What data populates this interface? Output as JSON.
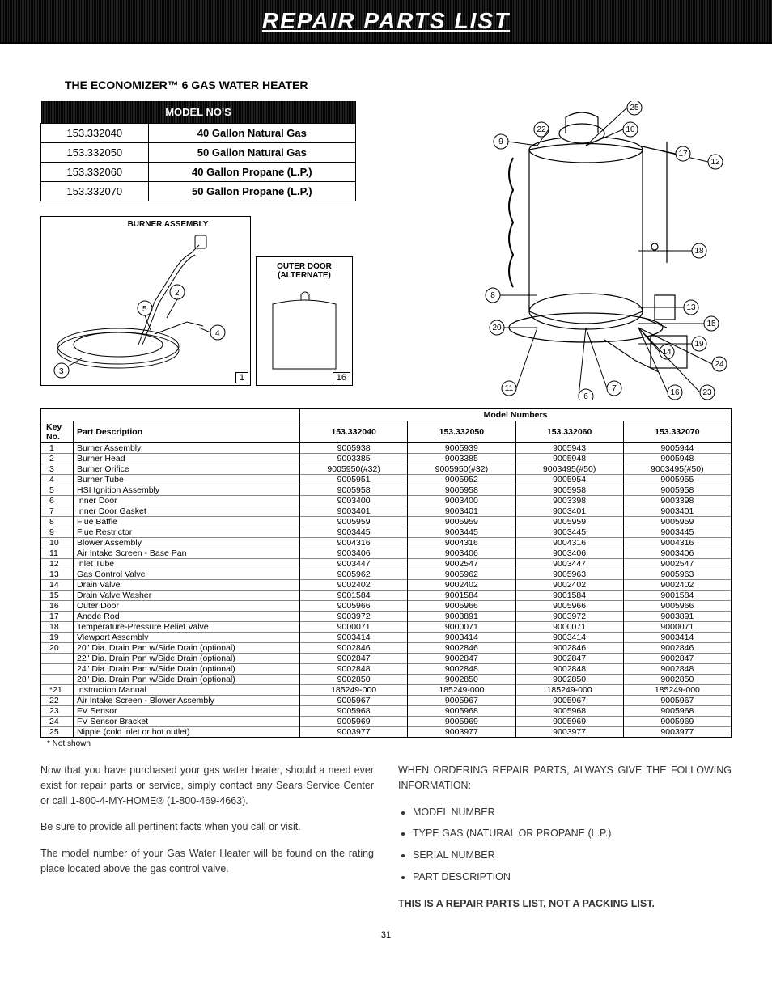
{
  "title": "REPAIR PARTS LIST",
  "subtitle": "THE ECONOMIZER™ 6 GAS WATER HEATER",
  "model_table": {
    "header": "MODEL NO'S",
    "rows": [
      {
        "num": "153.332040",
        "desc": "40 Gallon Natural Gas"
      },
      {
        "num": "153.332050",
        "desc": "50 Gallon Natural Gas"
      },
      {
        "num": "153.332060",
        "desc": "40 Gallon Propane (L.P.)"
      },
      {
        "num": "153.332070",
        "desc": "50 Gallon Propane (L.P.)"
      }
    ]
  },
  "diagram_labels": {
    "burner": "BURNER ASSEMBLY",
    "door_l1": "OUTER DOOR",
    "door_l2": "(ALTERNATE)",
    "burner_corner": "1",
    "door_corner": "16"
  },
  "callouts_burner": [
    "2",
    "3",
    "4",
    "5"
  ],
  "callouts_heater": [
    "6",
    "7",
    "8",
    "9",
    "10",
    "11",
    "12",
    "13",
    "14",
    "15",
    "16",
    "17",
    "18",
    "19",
    "20",
    "22",
    "23",
    "24",
    "25"
  ],
  "parts_header": {
    "model_numbers": "Model Numbers",
    "key": "Key No.",
    "desc": "Part Description"
  },
  "parts_cols": [
    "153.332040",
    "153.332050",
    "153.332060",
    "153.332070"
  ],
  "parts": [
    {
      "k": "1",
      "d": "Burner Assembly",
      "v": [
        "9005938",
        "9005939",
        "9005943",
        "9005944"
      ]
    },
    {
      "k": "2",
      "d": "Burner Head",
      "v": [
        "9003385",
        "9003385",
        "9005948",
        "9005948"
      ]
    },
    {
      "k": "3",
      "d": "Burner Orifice",
      "v": [
        "9005950(#32)",
        "9005950(#32)",
        "9003495(#50)",
        "9003495(#50)"
      ]
    },
    {
      "k": "4",
      "d": "Burner Tube",
      "v": [
        "9005951",
        "9005952",
        "9005954",
        "9005955"
      ]
    },
    {
      "k": "5",
      "d": "HSI Ignition Assembly",
      "v": [
        "9005958",
        "9005958",
        "9005958",
        "9005958"
      ]
    },
    {
      "k": "6",
      "d": "Inner Door",
      "v": [
        "9003400",
        "9003400",
        "9003398",
        "9003398"
      ]
    },
    {
      "k": "7",
      "d": "Inner Door Gasket",
      "v": [
        "9003401",
        "9003401",
        "9003401",
        "9003401"
      ]
    },
    {
      "k": "8",
      "d": "Flue Baffle",
      "v": [
        "9005959",
        "9005959",
        "9005959",
        "9005959"
      ]
    },
    {
      "k": "9",
      "d": "Flue Restrictor",
      "v": [
        "9003445",
        "9003445",
        "9003445",
        "9003445"
      ]
    },
    {
      "k": "10",
      "d": "Blower Assembly",
      "v": [
        "9004316",
        "9004316",
        "9004316",
        "9004316"
      ]
    },
    {
      "k": "11",
      "d": "Air Intake Screen - Base Pan",
      "v": [
        "9003406",
        "9003406",
        "9003406",
        "9003406"
      ]
    },
    {
      "k": "12",
      "d": "Inlet Tube",
      "v": [
        "9003447",
        "9002547",
        "9003447",
        "9002547"
      ]
    },
    {
      "k": "13",
      "d": "Gas Control Valve",
      "v": [
        "9005962",
        "9005962",
        "9005963",
        "9005963"
      ]
    },
    {
      "k": "14",
      "d": "Drain Valve",
      "v": [
        "9002402",
        "9002402",
        "9002402",
        "9002402"
      ]
    },
    {
      "k": "15",
      "d": "Drain Valve Washer",
      "v": [
        "9001584",
        "9001584",
        "9001584",
        "9001584"
      ]
    },
    {
      "k": "16",
      "d": "Outer Door",
      "v": [
        "9005966",
        "9005966",
        "9005966",
        "9005966"
      ]
    },
    {
      "k": "17",
      "d": "Anode Rod",
      "v": [
        "9003972",
        "9003891",
        "9003972",
        "9003891"
      ]
    },
    {
      "k": "18",
      "d": "Temperature-Pressure Relief Valve",
      "v": [
        "9000071",
        "9000071",
        "9000071",
        "9000071"
      ]
    },
    {
      "k": "19",
      "d": "Viewport Assembly",
      "v": [
        "9003414",
        "9003414",
        "9003414",
        "9003414"
      ]
    },
    {
      "k": "20",
      "d": "20\" Dia. Drain Pan w/Side Drain (optional)",
      "v": [
        "9002846",
        "9002846",
        "9002846",
        "9002846"
      ]
    },
    {
      "k": "",
      "d": "22\" Dia. Drain Pan w/Side Drain (optional)",
      "v": [
        "9002847",
        "9002847",
        "9002847",
        "9002847"
      ]
    },
    {
      "k": "",
      "d": "24\" Dia. Drain Pan w/Side Drain (optional)",
      "v": [
        "9002848",
        "9002848",
        "9002848",
        "9002848"
      ]
    },
    {
      "k": "",
      "d": "28\" Dia. Drain Pan w/Side Drain (optional)",
      "v": [
        "9002850",
        "9002850",
        "9002850",
        "9002850"
      ]
    },
    {
      "k": "*21",
      "d": "Instruction Manual",
      "v": [
        "185249-000",
        "185249-000",
        "185249-000",
        "185249-000"
      ]
    },
    {
      "k": "22",
      "d": "Air Intake Screen - Blower Assembly",
      "v": [
        "9005967",
        "9005967",
        "9005967",
        "9005967"
      ]
    },
    {
      "k": "23",
      "d": "FV Sensor",
      "v": [
        "9005968",
        "9005968",
        "9005968",
        "9005968"
      ]
    },
    {
      "k": "24",
      "d": "FV Sensor Bracket",
      "v": [
        "9005969",
        "9005969",
        "9005969",
        "9005969"
      ]
    },
    {
      "k": "25",
      "d": "Nipple (cold inlet or hot outlet)",
      "v": [
        "9003977",
        "9003977",
        "9003977",
        "9003977"
      ]
    }
  ],
  "footnote": "* Not shown",
  "body": {
    "p1": "Now that you have purchased your gas water heater, should a need ever exist for repair parts or service, simply contact any Sears Service Center or call 1-800-4-MY-HOME® (1-800-469-4663).",
    "p2": "Be sure to provide all pertinent facts when you call or visit.",
    "p3": "The model number of your Gas Water Heater will be found on the rating place located above the gas control valve.",
    "p4": "WHEN ORDERING REPAIR PARTS, ALWAYS GIVE THE FOLLOWING INFORMATION:",
    "bullets": [
      "MODEL NUMBER",
      "TYPE GAS (NATURAL OR PROPANE (L.P.)",
      "SERIAL NUMBER",
      "PART DESCRIPTION"
    ],
    "p5": "THIS IS A REPAIR PARTS LIST, NOT A PACKING LIST."
  },
  "page_number": "31"
}
